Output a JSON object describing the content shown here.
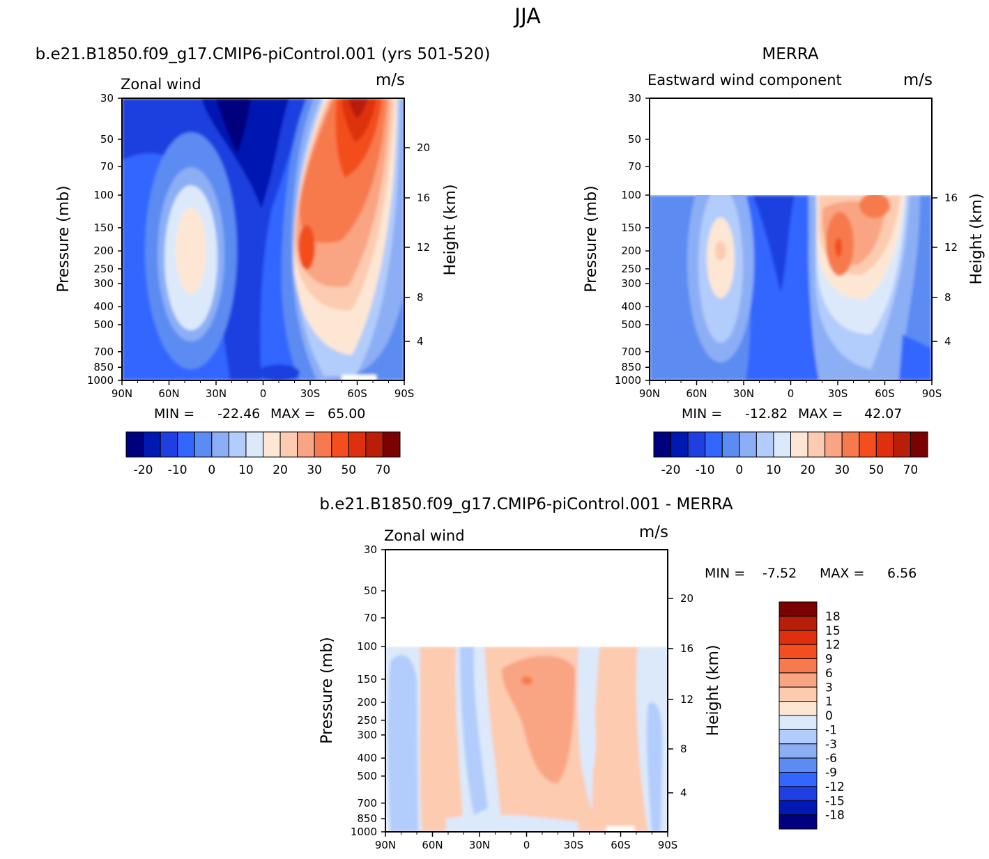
{
  "figure": {
    "title": "JJA",
    "unit": "m/s",
    "y_axis_title": "Pressure (mb)",
    "y2_axis_title": "Height (km)"
  },
  "colors": {
    "main_scale": [
      "#00007f",
      "#0019b2",
      "#1f3fe0",
      "#3366ff",
      "#5b8cf2",
      "#8caef5",
      "#b2ccfb",
      "#dce9fb",
      "#fde7d4",
      "#fdcbb0",
      "#f9a482",
      "#f77a4e",
      "#f44d1e",
      "#de300f",
      "#b81e08",
      "#7a0202"
    ],
    "diff_scale_top_to_bottom": [
      "#7a0202",
      "#b81e08",
      "#de300f",
      "#f44d1e",
      "#f77a4e",
      "#f9a482",
      "#fdcbb0",
      "#fde7d4",
      "#dce9fb",
      "#b2ccfb",
      "#8caef5",
      "#5b8cf2",
      "#3366ff",
      "#1f3fe0",
      "#0019b2",
      "#00007f"
    ]
  },
  "chart_data": [
    {
      "type": "contour",
      "panel": "model",
      "title": "b.e21.B1850.f09_g17.CMIP6-piControl.001 (yrs 501-520)",
      "subtitle_left": "Zonal wind",
      "subtitle_right": "m/s",
      "xlabel": "",
      "ylabel": "Pressure (mb)",
      "y2label": "Height (km)",
      "x_ticks": [
        "90N",
        "60N",
        "30N",
        "0",
        "30S",
        "60S",
        "90S"
      ],
      "y_ticks": [
        "30",
        "50",
        "70",
        "100",
        "150",
        "200",
        "250",
        "300",
        "400",
        "500",
        "700",
        "850",
        "1000"
      ],
      "y_tick_values": [
        30,
        50,
        70,
        100,
        150,
        200,
        250,
        300,
        400,
        500,
        700,
        850,
        1000
      ],
      "y2_ticks": [
        "4",
        "8",
        "12",
        "16",
        "20"
      ],
      "ylim": [
        1000,
        30
      ],
      "min_label": "MIN = ",
      "min_value": "-22.46",
      "max_label": "MAX = ",
      "max_value": "65.00",
      "data_top_mb": 30,
      "colorbar_ticks": [
        "-20",
        "-10",
        "0",
        "10",
        "20",
        "30",
        "50",
        "70"
      ],
      "features": [
        {
          "lat": 45,
          "p": 200,
          "value": 17
        },
        {
          "lat": 20,
          "p": 30,
          "value": -22.46
        },
        {
          "lat": -30,
          "p": 200,
          "value": 50
        },
        {
          "lat": -60,
          "p": 30,
          "value": 65
        }
      ]
    },
    {
      "type": "contour",
      "panel": "obs",
      "title": "MERRA",
      "subtitle_left": "Eastward wind component",
      "subtitle_right": "m/s",
      "xlabel": "",
      "ylabel": "Pressure (mb)",
      "y2label": "Height (km)",
      "x_ticks": [
        "90N",
        "60N",
        "30N",
        "0",
        "30S",
        "60S",
        "90S"
      ],
      "y_ticks": [
        "30",
        "50",
        "70",
        "100",
        "150",
        "200",
        "250",
        "300",
        "400",
        "500",
        "700",
        "850",
        "1000"
      ],
      "y_tick_values": [
        30,
        50,
        70,
        100,
        150,
        200,
        250,
        300,
        400,
        500,
        700,
        850,
        1000
      ],
      "y2_ticks": [
        "4",
        "8",
        "12",
        "16"
      ],
      "ylim": [
        1000,
        30
      ],
      "min_label": "MIN = ",
      "min_value": "-12.82",
      "max_label": "MAX = ",
      "max_value": "42.07",
      "data_top_mb": 100,
      "colorbar_ticks": [
        "-20",
        "-10",
        "0",
        "10",
        "20",
        "30",
        "50",
        "70"
      ],
      "features": [
        {
          "lat": 42,
          "p": 200,
          "value": 17
        },
        {
          "lat": 0,
          "p": 150,
          "value": -12.82
        },
        {
          "lat": -30,
          "p": 200,
          "value": 42.07
        }
      ]
    },
    {
      "type": "contour",
      "panel": "difference",
      "title": "b.e21.B1850.f09_g17.CMIP6-piControl.001 - MERRA",
      "subtitle_left": "Zonal wind",
      "subtitle_right": "m/s",
      "xlabel": "",
      "ylabel": "Pressure (mb)",
      "y2label": "Height (km)",
      "x_ticks": [
        "90N",
        "60N",
        "30N",
        "0",
        "30S",
        "60S",
        "90S"
      ],
      "y_ticks": [
        "30",
        "50",
        "70",
        "100",
        "150",
        "200",
        "250",
        "300",
        "400",
        "500",
        "700",
        "850",
        "1000"
      ],
      "y_tick_values": [
        30,
        50,
        70,
        100,
        150,
        200,
        250,
        300,
        400,
        500,
        700,
        850,
        1000
      ],
      "y2_ticks": [
        "4",
        "8",
        "12",
        "16",
        "20"
      ],
      "ylim": [
        1000,
        30
      ],
      "min_label": "MIN = ",
      "min_value": "-7.52",
      "max_label": "MAX = ",
      "max_value": "6.56",
      "data_top_mb": 100,
      "colorbar_ticks": [
        "18",
        "15",
        "12",
        "9",
        "6",
        "3",
        "1",
        "0",
        "-1",
        "-3",
        "-6",
        "-9",
        "-12",
        "-15",
        "-18"
      ],
      "features": [
        {
          "lat": 0,
          "p": 160,
          "value": 6.56
        },
        {
          "lat": -20,
          "p": 300,
          "value": 3
        },
        {
          "lat": 85,
          "p": 300,
          "value": -3
        }
      ]
    }
  ]
}
